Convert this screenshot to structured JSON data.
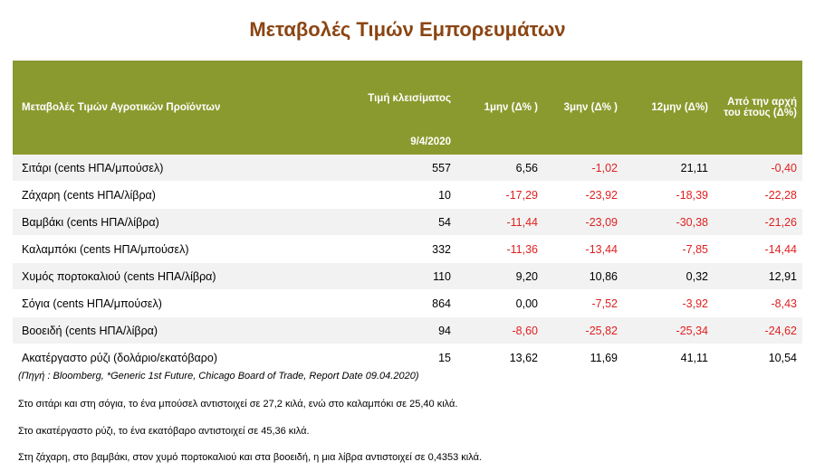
{
  "title": "Μεταβολές Τιμών Εμπορευμάτων",
  "table": {
    "headers": {
      "product": "Μεταβολές Τιμών Αγροτικών Προϊόντων",
      "price": "Τιμή κλεισίματος",
      "price_date": "9/4/2020",
      "m1": "1μην (Δ% )",
      "m3": "3μην (Δ% )",
      "m12": "12μην (Δ%)",
      "ytd_line1": "Από την αρχή",
      "ytd_line2": "του έτους (Δ%)"
    },
    "rows": [
      {
        "name": "Σιτάρι (cents ΗΠΑ/μπούσελ)",
        "price": "557",
        "m1": "6,56",
        "m3": "-1,02",
        "m12": "21,11",
        "ytd": "-0,40"
      },
      {
        "name": "Ζάχαρη (cents ΗΠΑ/λίβρα)",
        "price": "10",
        "m1": "-17,29",
        "m3": "-23,92",
        "m12": "-18,39",
        "ytd": "-22,28"
      },
      {
        "name": "Βαμβάκι (cents ΗΠΑ/λίβρα)",
        "price": "54",
        "m1": "-11,44",
        "m3": "-23,09",
        "m12": "-30,38",
        "ytd": "-21,26"
      },
      {
        "name": "Καλαμπόκι (cents ΗΠΑ/μπούσελ)",
        "price": "332",
        "m1": "-11,36",
        "m3": "-13,44",
        "m12": "-7,85",
        "ytd": "-14,44"
      },
      {
        "name": "Χυμός πορτοκαλιού (cents ΗΠΑ/λίβρα)",
        "price": "110",
        "m1": "9,20",
        "m3": "10,86",
        "m12": "0,32",
        "ytd": "12,91"
      },
      {
        "name": "Σόγια (cents ΗΠΑ/μπούσελ)",
        "price": "864",
        "m1": "0,00",
        "m3": "-7,52",
        "m12": "-3,92",
        "ytd": "-8,43"
      },
      {
        "name": "Βοοειδή (cents ΗΠΑ/λίβρα)",
        "price": "94",
        "m1": "-8,60",
        "m3": "-25,82",
        "m12": "-25,34",
        "ytd": "-24,62"
      },
      {
        "name": "Ακατέργαστο ρύζι (δολάριο/εκατόβαρο)",
        "price": "15",
        "m1": "13,62",
        "m3": "11,69",
        "m12": "41,11",
        "ytd": "10,54"
      }
    ]
  },
  "source": "(Πηγή : Bloomberg, *Generic 1st Future, Chicago Board of Trade, Report Date 09.04.2020)",
  "notes": [
    "Στο σιτάρι και στη σόγια, το ένα μπούσελ αντιστοιχεί σε 27,2 κιλά, ενώ στο καλαμπόκι σε 25,40 κιλά.",
    "Στο ακατέργαστο ρύζι, το ένα εκατόβαρο αντιστοιχεί σε 45,36 κιλά.",
    "Στη ζάχαρη, στο βαμβάκι, στον χυμό πορτοκαλιού και στα βοοειδή, η μια λίβρα αντιστοιχεί σε 0,4353 κιλά."
  ],
  "colors": {
    "header_bg": "#8B9A2E",
    "title": "#8B4513",
    "negative": "#E02020"
  }
}
